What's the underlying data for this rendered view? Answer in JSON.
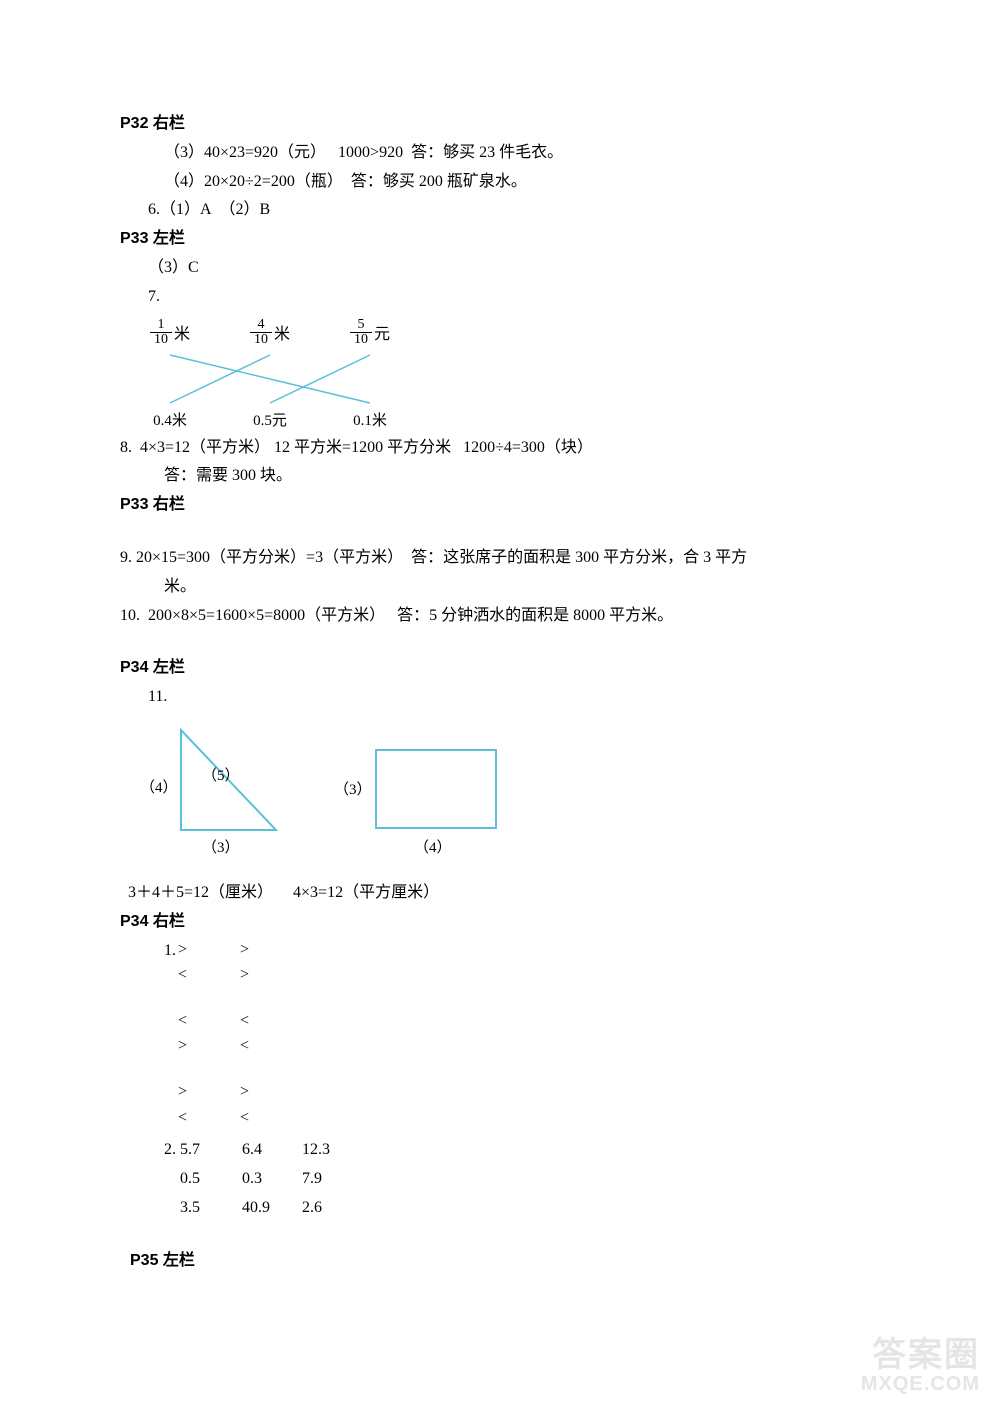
{
  "colors": {
    "text": "#000000",
    "svg_stroke": "#5bbfd9",
    "background": "#ffffff",
    "watermark": "#999999"
  },
  "fontsize_body": 16,
  "p32r": {
    "header": "P32 右栏",
    "l1": "（3）40×23=920（元）   1000>920  答：够买 23 件毛衣。",
    "l2": "（4）20×20÷2=200（瓶）  答：够买 200 瓶矿泉水。",
    "l3": "6.（1）A  （2）B"
  },
  "p33l": {
    "header": "P33 左栏",
    "l1": "（3）C",
    "l2": "7.",
    "fractions": [
      {
        "num": "1",
        "den": "10",
        "unit": "米"
      },
      {
        "num": "4",
        "den": "10",
        "unit": "米"
      },
      {
        "num": "5",
        "den": "10",
        "unit": "元"
      }
    ],
    "bottom": [
      "0.4米",
      "0.5元",
      "0.1米"
    ],
    "l8a": "8.  4×3=12（平方米） 12 平方米=1200 平方分米   1200÷4=300（块）",
    "l8b": "答：需要 300 块。"
  },
  "p33r": {
    "header": "P33 右栏",
    "l9a": "9. 20×15=300（平方分米）=3（平方米）  答：这张席子的面积是 300 平方分米，合 3 平方",
    "l9b": "米。",
    "l10": "10.  200×8×5=1600×5=8000（平方米）   答：5 分钟洒水的面积是 8000 平方米。"
  },
  "p34l": {
    "header": "P34 左栏",
    "l11": "11.",
    "triangle_labels": {
      "left": "（4）",
      "hyp": "（5）",
      "bottom": "（3）"
    },
    "rect_labels": {
      "left": "（3）",
      "bottom": "（4）"
    },
    "calc": "3＋4＋5=12（厘米）     4×3=12（平方厘米）"
  },
  "p34r": {
    "header": "P34 右栏",
    "q1_label": "1.",
    "q1_rows": [
      [
        ">",
        ">"
      ],
      [
        "<",
        ">"
      ],
      null,
      [
        "<",
        "<"
      ],
      [
        ">",
        "<"
      ],
      null,
      [
        ">",
        ">"
      ],
      [
        "<",
        "<"
      ]
    ],
    "q2_label": "2.",
    "q2_rows": [
      [
        "5.7",
        "6.4",
        "12.3"
      ],
      [
        "0.5",
        "0.3",
        "7.9"
      ],
      [
        "3.5",
        "40.9",
        "2.6"
      ]
    ]
  },
  "p35l": {
    "header": "P35 左栏"
  },
  "watermark": {
    "line1": "答案圈",
    "line2": "MXQE.COM"
  }
}
